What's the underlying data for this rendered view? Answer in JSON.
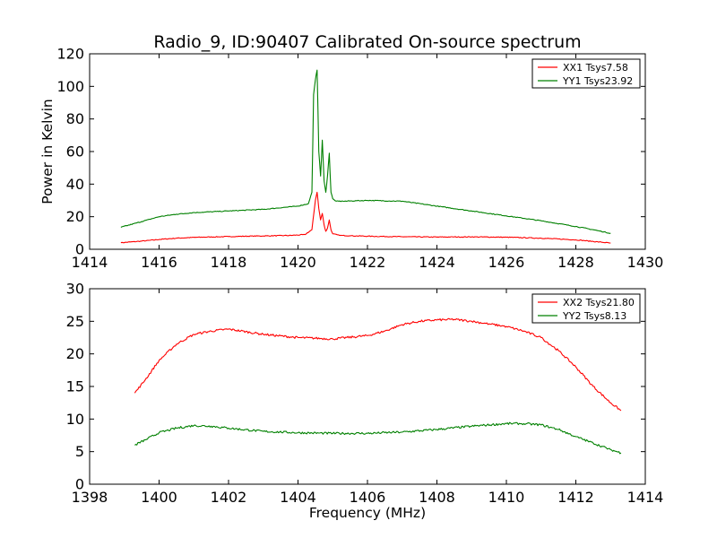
{
  "chart_data": [
    {
      "type": "line",
      "title": "Radio_9, ID:90407 Calibrated On-source spectrum",
      "xlabel": "",
      "ylabel": "Power in Kelvin",
      "xlim": [
        1414,
        1430
      ],
      "ylim": [
        0,
        120
      ],
      "xticks": [
        1414,
        1416,
        1418,
        1420,
        1422,
        1424,
        1426,
        1428,
        1430
      ],
      "yticks": [
        0,
        20,
        40,
        60,
        80,
        100,
        120
      ],
      "legend_position": "top-right",
      "grid": false,
      "series": [
        {
          "name": "XX1 Tsys7.58",
          "color": "#ff0000",
          "x": [
            1414.9,
            1415.5,
            1416.0,
            1416.5,
            1417.0,
            1418.0,
            1419.0,
            1419.8,
            1420.2,
            1420.4,
            1420.5,
            1420.55,
            1420.6,
            1420.65,
            1420.7,
            1420.75,
            1420.8,
            1420.85,
            1420.9,
            1420.95,
            1421.0,
            1421.2,
            1421.5,
            1422.0,
            1423.0,
            1424.0,
            1425.0,
            1426.0,
            1427.0,
            1428.0,
            1429.0
          ],
          "y": [
            4,
            5,
            6,
            6.8,
            7.3,
            7.8,
            8.2,
            8.5,
            9,
            12,
            30,
            35,
            25,
            18,
            22,
            15,
            11,
            13,
            18,
            12,
            9.5,
            8.5,
            8.3,
            8,
            7.7,
            7.5,
            7.6,
            7.4,
            6.8,
            5.8,
            3.8
          ]
        },
        {
          "name": "YY1 Tsys23.92",
          "color": "#008000",
          "x": [
            1414.9,
            1415.5,
            1416.0,
            1416.5,
            1417.0,
            1418.0,
            1419.0,
            1420.0,
            1420.3,
            1420.4,
            1420.45,
            1420.5,
            1420.55,
            1420.6,
            1420.65,
            1420.7,
            1420.75,
            1420.8,
            1420.85,
            1420.9,
            1420.95,
            1421.0,
            1421.1,
            1421.3,
            1422.0,
            1423.0,
            1424.0,
            1425.0,
            1426.0,
            1427.0,
            1428.0,
            1428.5,
            1429.0
          ],
          "y": [
            13.5,
            17,
            20,
            21.5,
            22.5,
            23.5,
            24.5,
            26.5,
            28,
            35,
            95,
            104,
            110,
            60,
            45,
            67,
            42,
            35,
            45,
            59,
            35,
            31,
            29.5,
            29.5,
            30,
            29.5,
            26.5,
            23.5,
            20.5,
            17.5,
            14,
            12,
            9.8
          ]
        }
      ]
    },
    {
      "type": "line",
      "title": "",
      "xlabel": "Frequency (MHz)",
      "ylabel": "",
      "xlim": [
        1398,
        1414
      ],
      "ylim": [
        0,
        30
      ],
      "xticks": [
        1398,
        1400,
        1402,
        1404,
        1406,
        1408,
        1410,
        1412,
        1414
      ],
      "yticks": [
        0,
        5,
        10,
        15,
        20,
        25,
        30
      ],
      "legend_position": "top-right",
      "grid": false,
      "series": [
        {
          "name": "XX2 Tsys21.80",
          "color": "#ff0000",
          "x": [
            1399.3,
            1399.6,
            1400.0,
            1400.5,
            1401.0,
            1401.5,
            1402.0,
            1403.0,
            1404.0,
            1405.0,
            1406.0,
            1406.5,
            1407.0,
            1407.5,
            1408.0,
            1408.5,
            1409.0,
            1409.5,
            1410.0,
            1410.5,
            1411.0,
            1411.5,
            1412.0,
            1412.5,
            1413.0,
            1413.3
          ],
          "y": [
            14,
            16,
            19,
            21.5,
            23,
            23.5,
            23.8,
            23,
            22.5,
            22.3,
            22.8,
            23.5,
            24.5,
            25,
            25.2,
            25.3,
            25,
            24.6,
            24.2,
            23.5,
            22.5,
            20.5,
            18,
            15,
            12.5,
            11.3
          ]
        },
        {
          "name": "YY2 Tsys8.13",
          "color": "#008000",
          "x": [
            1399.3,
            1399.6,
            1400.0,
            1400.5,
            1401.0,
            1401.5,
            1402.0,
            1403.0,
            1404.0,
            1405.0,
            1406.0,
            1407.0,
            1408.0,
            1409.0,
            1410.0,
            1410.5,
            1411.0,
            1411.5,
            1412.0,
            1412.5,
            1413.0,
            1413.3
          ],
          "y": [
            6,
            6.8,
            7.9,
            8.6,
            9,
            8.9,
            8.6,
            8.1,
            7.9,
            7.8,
            7.8,
            8,
            8.4,
            8.9,
            9.3,
            9.3,
            9.1,
            8.4,
            7.3,
            6.3,
            5.3,
            4.8
          ]
        }
      ]
    }
  ]
}
